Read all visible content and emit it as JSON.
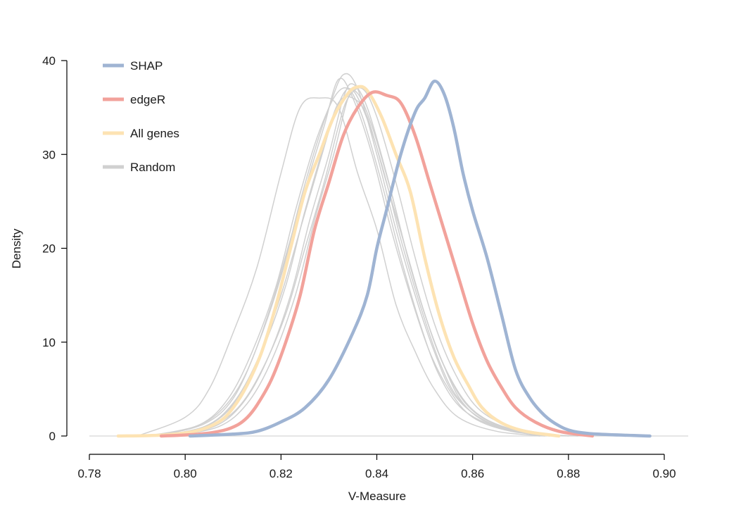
{
  "chart_data": {
    "type": "line",
    "subtype": "density",
    "title": "",
    "xlabel": "V-Measure",
    "ylabel": "Density",
    "xlim": [
      0.78,
      0.9
    ],
    "ylim": [
      0,
      40
    ],
    "x_ticks": [
      "0.78",
      "0.80",
      "0.82",
      "0.84",
      "0.86",
      "0.88",
      "0.90"
    ],
    "y_ticks": [
      "0",
      "10",
      "20",
      "30",
      "40"
    ],
    "grid": false,
    "legend_position": "top-left",
    "legend": [
      {
        "label": "SHAP",
        "color": "#9fb4d3"
      },
      {
        "label": "edgeR",
        "color": "#f2a29b"
      },
      {
        "label": "All genes",
        "color": "#fde3b3"
      },
      {
        "label": "Random",
        "color": "#d0d0d0"
      }
    ],
    "series": [
      {
        "name": "SHAP",
        "color": "#9fb4d3",
        "width": 4.5,
        "points": [
          [
            0.801,
            0
          ],
          [
            0.81,
            0.2
          ],
          [
            0.815,
            0.5
          ],
          [
            0.82,
            1.5
          ],
          [
            0.825,
            3
          ],
          [
            0.83,
            6
          ],
          [
            0.835,
            11
          ],
          [
            0.838,
            15
          ],
          [
            0.84,
            20
          ],
          [
            0.842,
            24
          ],
          [
            0.845,
            30
          ],
          [
            0.848,
            34.5
          ],
          [
            0.85,
            36
          ],
          [
            0.852,
            37.8
          ],
          [
            0.854,
            36.5
          ],
          [
            0.856,
            33
          ],
          [
            0.858,
            28
          ],
          [
            0.86,
            24
          ],
          [
            0.863,
            19
          ],
          [
            0.866,
            13
          ],
          [
            0.869,
            7
          ],
          [
            0.872,
            4
          ],
          [
            0.875,
            2.2
          ],
          [
            0.878,
            1.1
          ],
          [
            0.881,
            0.5
          ],
          [
            0.886,
            0.2
          ],
          [
            0.897,
            0
          ]
        ]
      },
      {
        "name": "edgeR",
        "color": "#f2a29b",
        "width": 4.5,
        "points": [
          [
            0.795,
            0
          ],
          [
            0.803,
            0.2
          ],
          [
            0.808,
            0.6
          ],
          [
            0.811,
            1.2
          ],
          [
            0.813,
            2
          ],
          [
            0.815,
            3.3
          ],
          [
            0.818,
            6
          ],
          [
            0.821,
            10
          ],
          [
            0.824,
            15
          ],
          [
            0.827,
            22
          ],
          [
            0.83,
            27
          ],
          [
            0.833,
            32
          ],
          [
            0.836,
            35
          ],
          [
            0.839,
            36.6
          ],
          [
            0.842,
            36.3
          ],
          [
            0.845,
            35.5
          ],
          [
            0.848,
            32
          ],
          [
            0.851,
            27
          ],
          [
            0.854,
            22
          ],
          [
            0.857,
            17
          ],
          [
            0.86,
            12
          ],
          [
            0.863,
            8
          ],
          [
            0.866,
            5.2
          ],
          [
            0.869,
            3
          ],
          [
            0.873,
            1.5
          ],
          [
            0.878,
            0.5
          ],
          [
            0.885,
            0
          ]
        ]
      },
      {
        "name": "All genes",
        "color": "#fde3b3",
        "width": 4.5,
        "points": [
          [
            0.786,
            0
          ],
          [
            0.795,
            0.1
          ],
          [
            0.802,
            0.5
          ],
          [
            0.807,
            1.5
          ],
          [
            0.81,
            3
          ],
          [
            0.813,
            5.5
          ],
          [
            0.816,
            9
          ],
          [
            0.819,
            14
          ],
          [
            0.822,
            20
          ],
          [
            0.825,
            26
          ],
          [
            0.828,
            30
          ],
          [
            0.831,
            34
          ],
          [
            0.834,
            36.5
          ],
          [
            0.836,
            37.2
          ],
          [
            0.838,
            36.8
          ],
          [
            0.841,
            34
          ],
          [
            0.844,
            30
          ],
          [
            0.847,
            26
          ],
          [
            0.85,
            19
          ],
          [
            0.853,
            13
          ],
          [
            0.856,
            8.5
          ],
          [
            0.859,
            5.5
          ],
          [
            0.862,
            3
          ],
          [
            0.866,
            1.4
          ],
          [
            0.871,
            0.5
          ],
          [
            0.878,
            0
          ]
        ]
      },
      {
        "name": "Random",
        "color": "#d0d0d0",
        "width": 1.5,
        "points": [
          [
            0.79,
            0
          ],
          [
            0.8,
            2
          ],
          [
            0.805,
            5
          ],
          [
            0.81,
            11
          ],
          [
            0.815,
            18
          ],
          [
            0.82,
            28
          ],
          [
            0.824,
            35
          ],
          [
            0.828,
            36
          ],
          [
            0.832,
            35
          ],
          [
            0.836,
            28
          ],
          [
            0.84,
            22
          ],
          [
            0.844,
            14
          ],
          [
            0.848,
            9
          ],
          [
            0.852,
            5
          ],
          [
            0.857,
            2
          ],
          [
            0.865,
            0.5
          ],
          [
            0.875,
            0
          ]
        ]
      },
      {
        "name": "Random",
        "color": "#d0d0d0",
        "width": 1.5,
        "points": [
          [
            0.792,
            0
          ],
          [
            0.802,
            1
          ],
          [
            0.808,
            3
          ],
          [
            0.813,
            7
          ],
          [
            0.818,
            14
          ],
          [
            0.822,
            21
          ],
          [
            0.826,
            28
          ],
          [
            0.829,
            33
          ],
          [
            0.832,
            38
          ],
          [
            0.835,
            36
          ],
          [
            0.839,
            30
          ],
          [
            0.843,
            22
          ],
          [
            0.847,
            15
          ],
          [
            0.851,
            9
          ],
          [
            0.855,
            5
          ],
          [
            0.86,
            2
          ],
          [
            0.868,
            0.5
          ],
          [
            0.878,
            0
          ]
        ]
      },
      {
        "name": "Random",
        "color": "#d0d0d0",
        "width": 1.5,
        "points": [
          [
            0.794,
            0
          ],
          [
            0.804,
            1
          ],
          [
            0.81,
            3.5
          ],
          [
            0.815,
            8
          ],
          [
            0.82,
            15
          ],
          [
            0.824,
            22
          ],
          [
            0.828,
            29
          ],
          [
            0.831,
            34
          ],
          [
            0.834,
            37
          ],
          [
            0.837,
            35
          ],
          [
            0.841,
            29
          ],
          [
            0.845,
            21
          ],
          [
            0.849,
            14
          ],
          [
            0.853,
            8
          ],
          [
            0.857,
            4
          ],
          [
            0.863,
            1.5
          ],
          [
            0.872,
            0.3
          ],
          [
            0.882,
            0
          ]
        ]
      },
      {
        "name": "Random",
        "color": "#d0d0d0",
        "width": 1.5,
        "points": [
          [
            0.793,
            0
          ],
          [
            0.803,
            1.2
          ],
          [
            0.809,
            4
          ],
          [
            0.814,
            9
          ],
          [
            0.819,
            16
          ],
          [
            0.823,
            24
          ],
          [
            0.827,
            31
          ],
          [
            0.83,
            35
          ],
          [
            0.833,
            38.5
          ],
          [
            0.836,
            37
          ],
          [
            0.84,
            30
          ],
          [
            0.844,
            22
          ],
          [
            0.848,
            15
          ],
          [
            0.852,
            9
          ],
          [
            0.856,
            4.5
          ],
          [
            0.862,
            1.8
          ],
          [
            0.87,
            0.4
          ],
          [
            0.88,
            0
          ]
        ]
      },
      {
        "name": "Random",
        "color": "#d0d0d0",
        "width": 1.5,
        "points": [
          [
            0.795,
            0
          ],
          [
            0.805,
            1
          ],
          [
            0.811,
            3
          ],
          [
            0.816,
            7
          ],
          [
            0.821,
            13
          ],
          [
            0.825,
            20
          ],
          [
            0.829,
            27
          ],
          [
            0.832,
            33
          ],
          [
            0.834,
            36
          ],
          [
            0.837,
            37
          ],
          [
            0.84,
            34
          ],
          [
            0.844,
            27
          ],
          [
            0.848,
            19
          ],
          [
            0.852,
            12
          ],
          [
            0.856,
            7
          ],
          [
            0.861,
            3
          ],
          [
            0.868,
            1
          ],
          [
            0.878,
            0
          ]
        ]
      },
      {
        "name": "Random",
        "color": "#d0d0d0",
        "width": 1.5,
        "points": [
          [
            0.796,
            0
          ],
          [
            0.806,
            1
          ],
          [
            0.812,
            3.5
          ],
          [
            0.817,
            8
          ],
          [
            0.822,
            15
          ],
          [
            0.826,
            23
          ],
          [
            0.83,
            30
          ],
          [
            0.833,
            36
          ],
          [
            0.835,
            37.5
          ],
          [
            0.838,
            35
          ],
          [
            0.842,
            28
          ],
          [
            0.846,
            20
          ],
          [
            0.85,
            13
          ],
          [
            0.854,
            7.5
          ],
          [
            0.858,
            3.5
          ],
          [
            0.864,
            1.2
          ],
          [
            0.874,
            0
          ]
        ]
      },
      {
        "name": "Random",
        "color": "#d0d0d0",
        "width": 1.5,
        "points": [
          [
            0.794,
            0
          ],
          [
            0.804,
            1.3
          ],
          [
            0.81,
            4
          ],
          [
            0.815,
            9.5
          ],
          [
            0.82,
            17
          ],
          [
            0.824,
            25
          ],
          [
            0.828,
            32
          ],
          [
            0.831,
            36
          ],
          [
            0.834,
            37
          ],
          [
            0.837,
            34
          ],
          [
            0.841,
            27
          ],
          [
            0.845,
            19
          ],
          [
            0.849,
            12
          ],
          [
            0.853,
            6.5
          ],
          [
            0.858,
            2.8
          ],
          [
            0.866,
            0.8
          ],
          [
            0.876,
            0
          ]
        ]
      },
      {
        "name": "Random",
        "color": "#d0d0d0",
        "width": 1.5,
        "points": [
          [
            0.797,
            0
          ],
          [
            0.807,
            1
          ],
          [
            0.813,
            3.5
          ],
          [
            0.818,
            8
          ],
          [
            0.823,
            15
          ],
          [
            0.827,
            23
          ],
          [
            0.831,
            30
          ],
          [
            0.834,
            36
          ],
          [
            0.836,
            36.5
          ],
          [
            0.839,
            33
          ],
          [
            0.843,
            26
          ],
          [
            0.847,
            18
          ],
          [
            0.851,
            11.5
          ],
          [
            0.855,
            6.5
          ],
          [
            0.86,
            2.8
          ],
          [
            0.867,
            0.9
          ],
          [
            0.877,
            0
          ]
        ]
      },
      {
        "name": "Random",
        "color": "#d0d0d0",
        "width": 1.5,
        "points": [
          [
            0.795,
            0
          ],
          [
            0.805,
            1.2
          ],
          [
            0.811,
            4
          ],
          [
            0.816,
            9
          ],
          [
            0.821,
            16
          ],
          [
            0.825,
            24
          ],
          [
            0.829,
            31
          ],
          [
            0.832,
            35.5
          ],
          [
            0.835,
            36
          ],
          [
            0.838,
            34
          ],
          [
            0.842,
            27
          ],
          [
            0.846,
            20
          ],
          [
            0.85,
            13
          ],
          [
            0.854,
            7.5
          ],
          [
            0.859,
            3.2
          ],
          [
            0.866,
            1
          ],
          [
            0.876,
            0
          ]
        ]
      }
    ]
  }
}
